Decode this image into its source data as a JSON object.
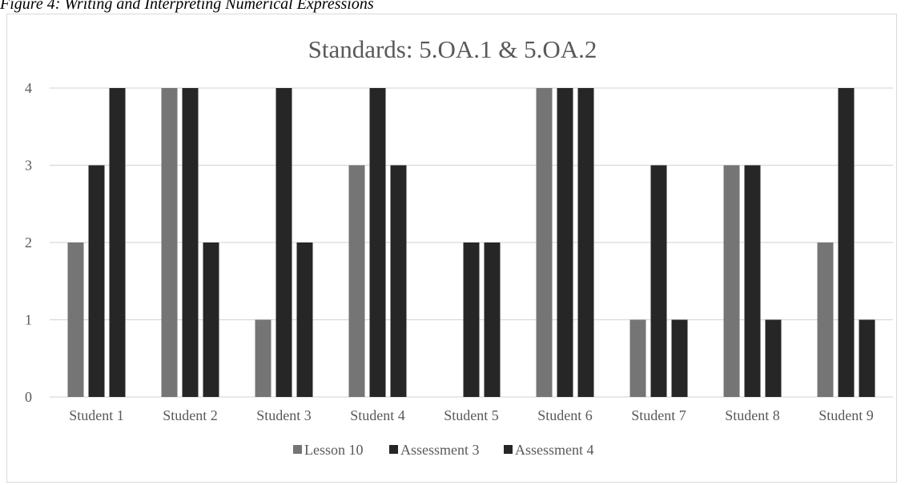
{
  "caption": "Figure 4: Writing and Interpreting Numerical Expressions",
  "chart_data": {
    "type": "bar",
    "title": "Standards: 5.OA.1 & 5.OA.2",
    "xlabel": "",
    "ylabel": "",
    "ylim": [
      0,
      4
    ],
    "yticks": [
      0,
      1,
      2,
      3,
      4
    ],
    "grid": true,
    "legend": "bottom",
    "categories": [
      "Student 1",
      "Student 2",
      "Student 3",
      "Student 4",
      "Student 5",
      "Student 6",
      "Student 7",
      "Student 8",
      "Student 9"
    ],
    "series": [
      {
        "name": "Lesson 10",
        "color": "#757575",
        "values": [
          2,
          4,
          1,
          3,
          0,
          4,
          1,
          3,
          2
        ]
      },
      {
        "name": "Assessment 3",
        "color": "#262626",
        "values": [
          3,
          4,
          4,
          4,
          2,
          4,
          3,
          3,
          4
        ]
      },
      {
        "name": "Assessment 4",
        "color": "#262626",
        "values": [
          4,
          2,
          2,
          3,
          2,
          4,
          1,
          1,
          1
        ]
      }
    ]
  }
}
